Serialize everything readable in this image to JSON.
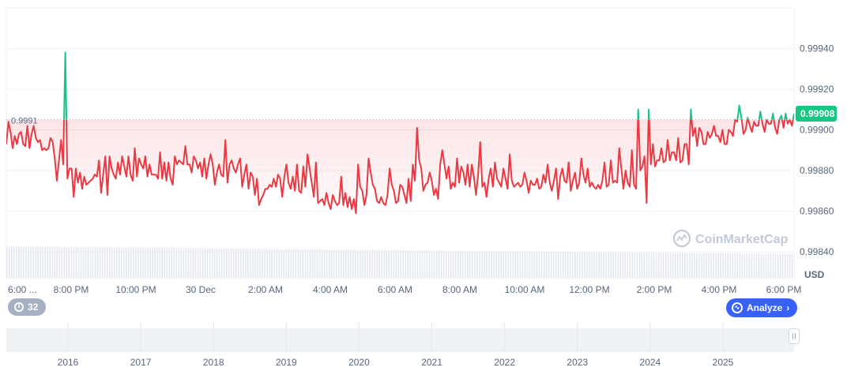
{
  "chart_data": {
    "type": "line",
    "unit": "USD",
    "ylim": [
      0.99828,
      0.9996
    ],
    "y_ticks": [
      0.9984,
      0.9986,
      0.9988,
      0.999,
      0.9992,
      0.9994
    ],
    "y_tick_labels": [
      "0.99840",
      "0.99860",
      "0.99880",
      "0.99900",
      "0.99920",
      "0.99940"
    ],
    "x_tick_labels": [
      "6:00 ...",
      "8:00 PM",
      "10:00 PM",
      "30 Dec",
      "2:00 AM",
      "4:00 AM",
      "6:00 AM",
      "8:00 AM",
      "10:00 AM",
      "12:00 PM",
      "2:00 PM",
      "4:00 PM",
      "6:00 PM"
    ],
    "baseline_value": 0.99905,
    "baseline_label": "0.9991",
    "current_value": 0.99908,
    "current_label": "0.99908",
    "grid": true,
    "colors": {
      "up": "#16c784",
      "down": "#ea3943",
      "axis_badge": "#16c784"
    },
    "values": [
      0.99893,
      0.99904,
      0.99899,
      0.99891,
      0.99897,
      0.99893,
      0.99898,
      0.99899,
      0.99893,
      0.99892,
      0.99902,
      0.99891,
      0.99898,
      0.99902,
      0.99896,
      0.99894,
      0.99895,
      0.9989,
      0.99891,
      0.9989,
      0.99891,
      0.99896,
      0.99894,
      0.99886,
      0.99875,
      0.99885,
      0.99895,
      0.99883,
      0.99938,
      0.99876,
      0.99881,
      0.99881,
      0.99867,
      0.99881,
      0.99874,
      0.99879,
      0.99871,
      0.99877,
      0.99873,
      0.99874,
      0.99875,
      0.99876,
      0.99878,
      0.99877,
      0.99885,
      0.99869,
      0.99878,
      0.99887,
      0.99868,
      0.99887,
      0.99881,
      0.99878,
      0.99876,
      0.99884,
      0.99878,
      0.99887,
      0.99882,
      0.99877,
      0.99887,
      0.99878,
      0.99875,
      0.99891,
      0.99877,
      0.99886,
      0.99883,
      0.99881,
      0.99887,
      0.99877,
      0.99883,
      0.99878,
      0.99878,
      0.99878,
      0.99876,
      0.99889,
      0.99876,
      0.99884,
      0.99875,
      0.99884,
      0.99876,
      0.99873,
      0.99887,
      0.99883,
      0.99885,
      0.99884,
      0.99883,
      0.99892,
      0.99883,
      0.99883,
      0.99879,
      0.99887,
      0.99885,
      0.99881,
      0.99884,
      0.99877,
      0.99886,
      0.99876,
      0.99883,
      0.99888,
      0.99883,
      0.99873,
      0.99879,
      0.99883,
      0.99878,
      0.99877,
      0.99895,
      0.99874,
      0.99883,
      0.99885,
      0.99881,
      0.99879,
      0.99883,
      0.99886,
      0.99872,
      0.99878,
      0.99883,
      0.99871,
      0.99879,
      0.99877,
      0.99868,
      0.99876,
      0.99863,
      0.99866,
      0.99868,
      0.99871,
      0.99871,
      0.99873,
      0.99872,
      0.99876,
      0.99872,
      0.99878,
      0.99876,
      0.99867,
      0.99877,
      0.99883,
      0.99874,
      0.99871,
      0.99877,
      0.9987,
      0.99883,
      0.9987,
      0.99869,
      0.99882,
      0.99872,
      0.99888,
      0.99881,
      0.99874,
      0.99867,
      0.99884,
      0.99864,
      0.99865,
      0.99866,
      0.99863,
      0.99869,
      0.99864,
      0.99861,
      0.99868,
      0.99865,
      0.99863,
      0.99864,
      0.99877,
      0.99863,
      0.99869,
      0.99862,
      0.99867,
      0.99861,
      0.99866,
      0.99859,
      0.99883,
      0.99872,
      0.9987,
      0.99863,
      0.99868,
      0.99886,
      0.99879,
      0.99873,
      0.99871,
      0.99865,
      0.99864,
      0.99867,
      0.99864,
      0.99863,
      0.99868,
      0.99881,
      0.99873,
      0.9987,
      0.99864,
      0.99865,
      0.99873,
      0.99872,
      0.99868,
      0.99864,
      0.99876,
      0.99865,
      0.99883,
      0.99875,
      0.99901,
      0.99885,
      0.99881,
      0.9987,
      0.99873,
      0.99874,
      0.99879,
      0.99875,
      0.99868,
      0.99871,
      0.99866,
      0.99883,
      0.9989,
      0.99883,
      0.99876,
      0.99882,
      0.99871,
      0.99874,
      0.99872,
      0.99886,
      0.99874,
      0.99882,
      0.99879,
      0.99873,
      0.99883,
      0.99872,
      0.99883,
      0.99877,
      0.99868,
      0.99878,
      0.99894,
      0.99872,
      0.99874,
      0.99867,
      0.99876,
      0.99881,
      0.99872,
      0.99884,
      0.99876,
      0.99874,
      0.99872,
      0.99881,
      0.99876,
      0.99871,
      0.99888,
      0.99875,
      0.99872,
      0.99873,
      0.99874,
      0.99872,
      0.99873,
      0.99879,
      0.99875,
      0.99869,
      0.99875,
      0.99873,
      0.99873,
      0.99876,
      0.99871,
      0.99872,
      0.99878,
      0.99874,
      0.99883,
      0.99874,
      0.9987,
      0.99875,
      0.99881,
      0.99866,
      0.99877,
      0.99881,
      0.99875,
      0.99874,
      0.99884,
      0.9987,
      0.99875,
      0.99879,
      0.99871,
      0.99874,
      0.99886,
      0.99878,
      0.99874,
      0.99881,
      0.99872,
      0.99874,
      0.99872,
      0.99871,
      0.99873,
      0.99871,
      0.99875,
      0.99884,
      0.99872,
      0.99873,
      0.99885,
      0.99874,
      0.99875,
      0.99874,
      0.99891,
      0.99881,
      0.99871,
      0.9988,
      0.99874,
      0.99872,
      0.9989,
      0.99873,
      0.99871,
      0.9991,
      0.9988,
      0.99882,
      0.99887,
      0.99864,
      0.9991,
      0.99883,
      0.99893,
      0.99882,
      0.99885,
      0.99885,
      0.99891,
      0.99884,
      0.99885,
      0.99895,
      0.99885,
      0.99889,
      0.99889,
      0.99885,
      0.99896,
      0.99884,
      0.99885,
      0.99893,
      0.99893,
      0.99883,
      0.9991,
      0.99897,
      0.99901,
      0.99892,
      0.99901,
      0.99899,
      0.99893,
      0.99893,
      0.99899,
      0.99896,
      0.99898,
      0.99902,
      0.99897,
      0.99897,
      0.99894,
      0.999,
      0.99893,
      0.99893,
      0.999,
      0.99899,
      0.99897,
      0.99905,
      0.99904,
      0.99912,
      0.99906,
      0.99898,
      0.999,
      0.99906,
      0.99902,
      0.99899,
      0.99904,
      0.99902,
      0.99902,
      0.99909,
      0.99903,
      0.99899,
      0.99905,
      0.99903,
      0.99903,
      0.99908,
      0.99901,
      0.99898,
      0.99905,
      0.99907,
      0.99901,
      0.99908,
      0.99903,
      0.99905,
      0.99902,
      0.99908
    ]
  },
  "ui": {
    "watermark": "CoinMarketCap",
    "events_count": "32",
    "analyze_label": "Analyze",
    "analyze_chevron": "›",
    "navigator_years": [
      "2016",
      "2017",
      "2018",
      "2019",
      "2020",
      "2021",
      "2022",
      "2023",
      "2024",
      "2025"
    ]
  }
}
